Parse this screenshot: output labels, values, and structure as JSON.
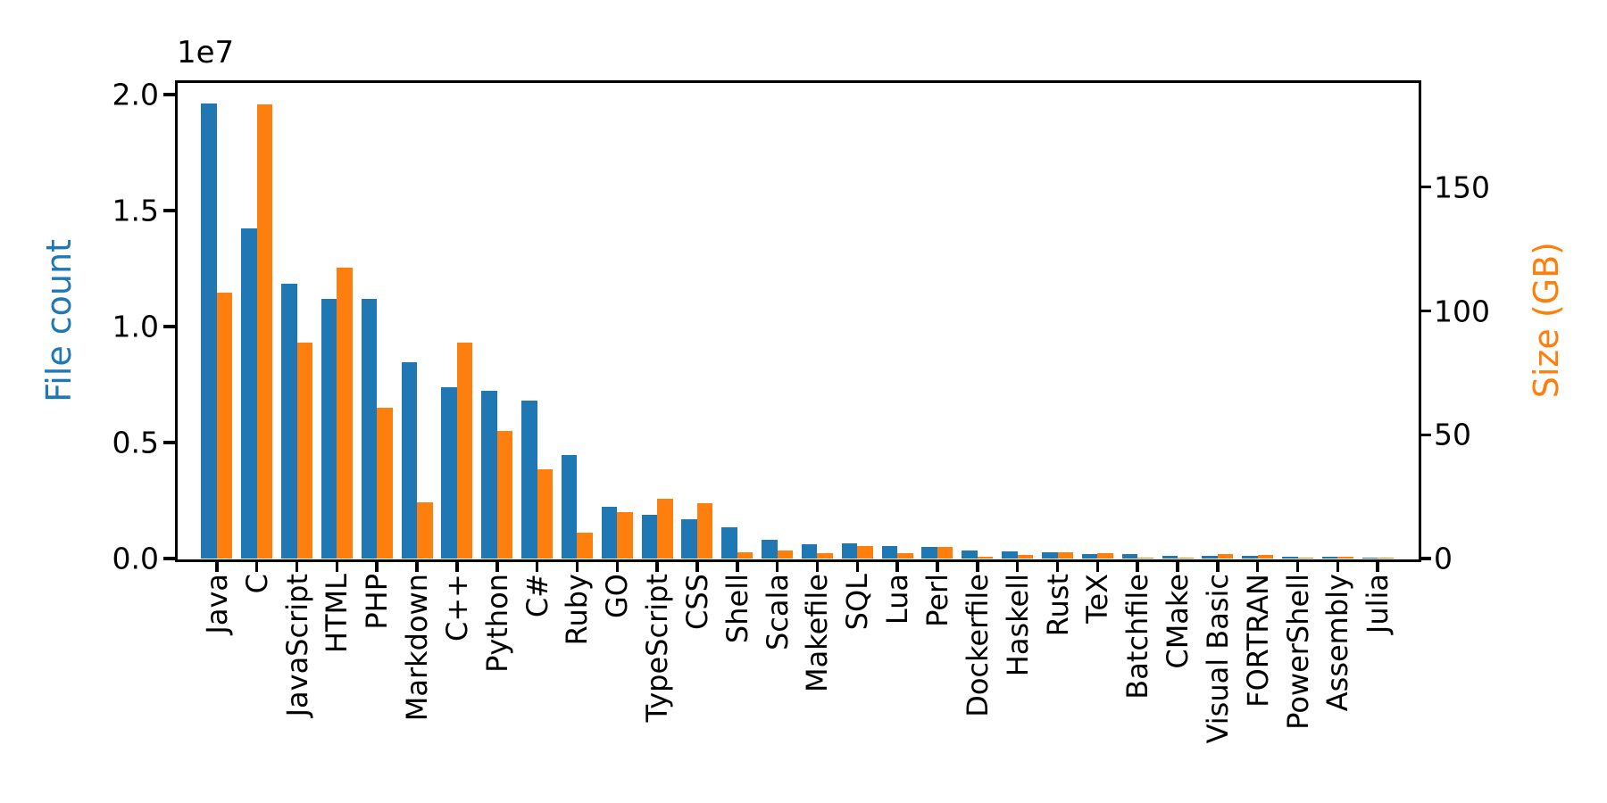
{
  "figure": {
    "offset_text": "1e7",
    "background": "#ffffff",
    "left_axis": {
      "label": "File count",
      "label_color": "#1f77b4",
      "tick_labels": [
        "0.0",
        "0.5",
        "1.0",
        "1.5",
        "2.0"
      ],
      "tick_values": [
        0,
        5000000,
        10000000,
        15000000,
        20000000
      ]
    },
    "right_axis": {
      "label": "Size (GB)",
      "label_color": "#ff7f0e",
      "tick_labels": [
        "0",
        "50",
        "100",
        "150"
      ],
      "tick_values": [
        0,
        50,
        100,
        150
      ]
    }
  },
  "chart_data": {
    "type": "bar",
    "title": "",
    "xlabel": "",
    "categories": [
      "Java",
      "C",
      "JavaScript",
      "HTML",
      "PHP",
      "Markdown",
      "C++",
      "Python",
      "C#",
      "Ruby",
      "GO",
      "TypeScript",
      "CSS",
      "Shell",
      "Scala",
      "Makefile",
      "SQL",
      "Lua",
      "Perl",
      "Dockerfile",
      "Haskell",
      "Rust",
      "TeX",
      "Batchfile",
      "CMake",
      "Visual Basic",
      "FORTRAN",
      "PowerShell",
      "Assembly",
      "Julia"
    ],
    "series": [
      {
        "name": "File count",
        "axis": "left",
        "color": "#1f77b4",
        "values": [
          19620000,
          14230000,
          11850000,
          11180000,
          11190000,
          8460000,
          7400000,
          7230000,
          6800000,
          4460000,
          2230000,
          1890000,
          1700000,
          1360000,
          810000,
          620000,
          640000,
          550000,
          500000,
          330000,
          320000,
          260000,
          200000,
          190000,
          130000,
          115000,
          105000,
          95000,
          75000,
          45000
        ]
      },
      {
        "name": "Size (GB)",
        "axis": "right",
        "color": "#ff7f0e",
        "values": [
          107.5,
          183.5,
          87.2,
          117.5,
          60.8,
          22.6,
          87.2,
          51.6,
          36.2,
          10.4,
          18.7,
          24.1,
          22.4,
          2.5,
          3.3,
          2.3,
          5.1,
          2.2,
          4.7,
          0.6,
          1.4,
          2.4,
          2.2,
          0.3,
          0.25,
          1.8,
          1.55,
          0.5,
          0.7,
          0.2
        ]
      }
    ],
    "left_ylim": [
      0,
      20540000
    ],
    "right_ylim": [
      0,
      192.4
    ],
    "grid": false,
    "legend": false
  }
}
